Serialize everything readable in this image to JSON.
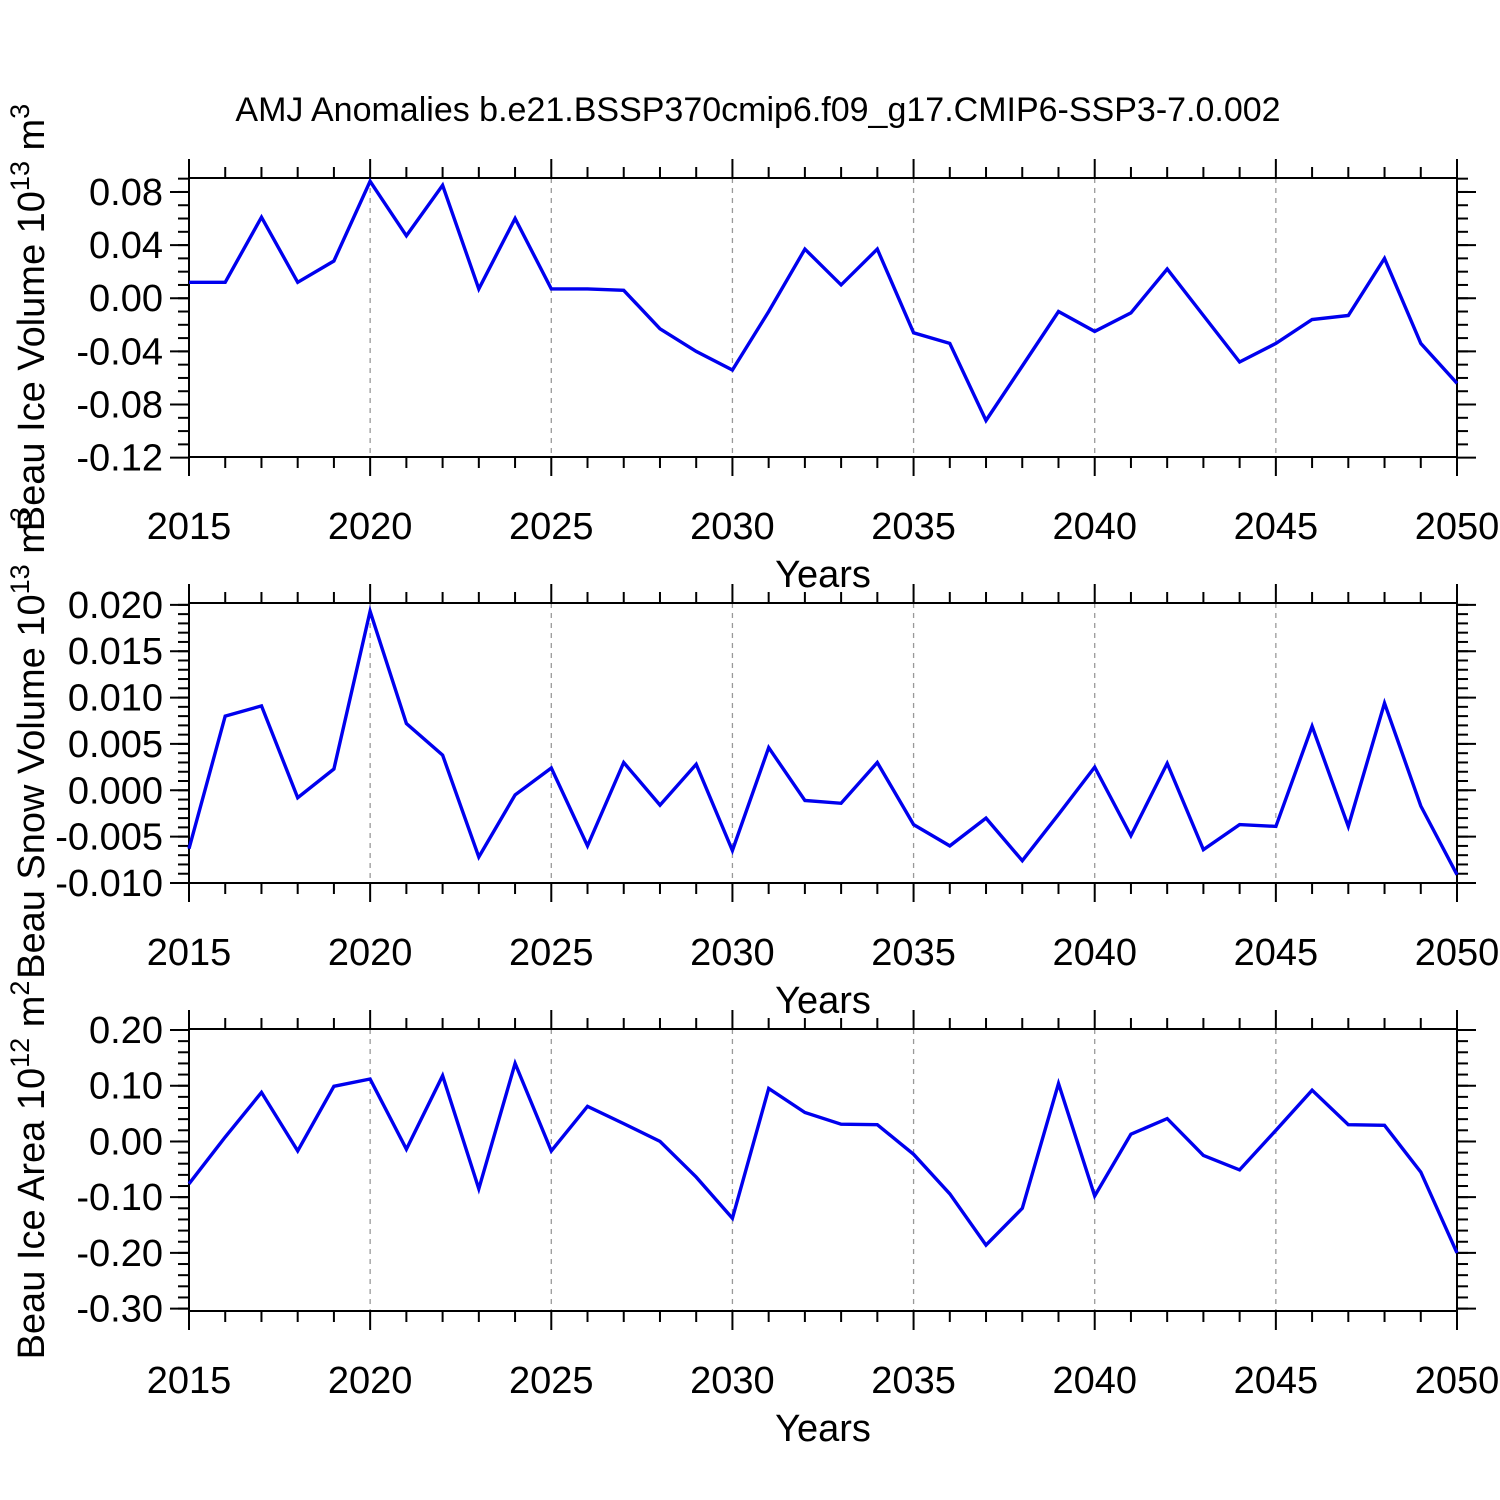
{
  "figure": {
    "title": "AMJ Anomalies b.e21.BSSP370cmip6.f09_g17.CMIP6-SSP3-7.0.002",
    "background": "#ffffff"
  },
  "chart_data": {
    "type": "line",
    "title": "AMJ Anomalies b.e21.BSSP370cmip6.f09_g17.CMIP6-SSP3-7.0.002",
    "xlabel": "Years",
    "x": [
      2015,
      2016,
      2017,
      2018,
      2019,
      2020,
      2021,
      2022,
      2023,
      2024,
      2025,
      2026,
      2027,
      2028,
      2029,
      2030,
      2031,
      2032,
      2033,
      2034,
      2035,
      2036,
      2037,
      2038,
      2039,
      2040,
      2041,
      2042,
      2043,
      2044,
      2045,
      2046,
      2047,
      2048,
      2049,
      2050
    ],
    "xlim": [
      2015,
      2050
    ],
    "x_major_ticks": [
      2015,
      2020,
      2025,
      2030,
      2035,
      2040,
      2045,
      2050
    ],
    "x_major_tick_labels": [
      "2015",
      "2020",
      "2025",
      "2030",
      "2035",
      "2040",
      "2045",
      "2050"
    ],
    "x_minor_step_years": 1,
    "x_grid_years": [
      2020,
      2025,
      2030,
      2035,
      2040,
      2045
    ],
    "grid_style": "dashed-vertical",
    "legend": "none",
    "series_color": "#0000ee",
    "grid_color": "#999999",
    "axis_color": "#000000",
    "panels": [
      {
        "name": "ice-volume",
        "ylabel": "Beau Ice Volume 10¹³ m³",
        "ylabel_parts": {
          "base": "Beau Ice Volume 10",
          "exp": "13",
          "unit": " m",
          "unit_exp": "3"
        },
        "ylim": [
          -0.1195,
          0.0905
        ],
        "y_minor_step": 0.01,
        "yticks": [
          {
            "v": 0.08,
            "label": "0.08"
          },
          {
            "v": 0.04,
            "label": "0.04"
          },
          {
            "v": 0.0,
            "label": "0.00"
          },
          {
            "v": -0.04,
            "label": "-0.04"
          },
          {
            "v": -0.08,
            "label": "-0.08"
          },
          {
            "v": -0.12,
            "label": "-0.12"
          }
        ],
        "values": [
          0.012,
          0.012,
          0.061,
          0.012,
          0.028,
          0.088,
          0.047,
          0.085,
          0.007,
          0.06,
          0.007,
          0.007,
          0.006,
          -0.023,
          -0.04,
          -0.054,
          -0.01,
          0.037,
          0.01,
          0.037,
          -0.026,
          -0.034,
          -0.092,
          -0.051,
          -0.01,
          -0.025,
          -0.011,
          0.022,
          -0.013,
          -0.048,
          -0.034,
          -0.016,
          -0.013,
          0.03,
          -0.034,
          -0.064
        ]
      },
      {
        "name": "snow-volume",
        "ylabel": "Beau Snow Volume 10¹³ m³",
        "ylabel_parts": {
          "base": "Beau Snow Volume 10",
          "exp": "13",
          "unit": " m",
          "unit_exp": "3"
        },
        "ylim": [
          -0.01,
          0.0202
        ],
        "y_minor_step": 0.001,
        "yticks": [
          {
            "v": 0.02,
            "label": "0.020"
          },
          {
            "v": 0.015,
            "label": "0.015"
          },
          {
            "v": 0.01,
            "label": "0.010"
          },
          {
            "v": 0.005,
            "label": "0.005"
          },
          {
            "v": 0.0,
            "label": "0.000"
          },
          {
            "v": -0.005,
            "label": "-0.005"
          },
          {
            "v": -0.01,
            "label": "-0.010"
          }
        ],
        "values": [
          -0.0063,
          0.008,
          0.0091,
          -0.0008,
          0.0023,
          0.0193,
          0.0072,
          0.0038,
          -0.0072,
          -0.0005,
          0.0024,
          -0.006,
          0.003,
          -0.0016,
          0.0028,
          -0.0065,
          0.0046,
          -0.0011,
          -0.0014,
          0.003,
          -0.0037,
          -0.006,
          -0.003,
          -0.0076,
          -0.0026,
          0.0025,
          -0.0049,
          0.0029,
          -0.0064,
          -0.0037,
          -0.0039,
          0.0069,
          -0.0039,
          0.0094,
          -0.0017,
          -0.0091
        ]
      },
      {
        "name": "ice-area",
        "ylabel": "Beau Ice Area 10¹² m²",
        "ylabel_parts": {
          "base": "Beau Ice Area 10",
          "exp": "12",
          "unit": " m",
          "unit_exp": "2"
        },
        "ylim": [
          -0.3043,
          0.2018
        ],
        "y_minor_step": 0.02,
        "yticks": [
          {
            "v": 0.2,
            "label": "0.20"
          },
          {
            "v": 0.1,
            "label": "0.10"
          },
          {
            "v": 0.0,
            "label": "0.00"
          },
          {
            "v": -0.1,
            "label": "-0.10"
          },
          {
            "v": -0.2,
            "label": "-0.20"
          },
          {
            "v": -0.3,
            "label": "-0.30"
          }
        ],
        "values": [
          -0.076,
          0.008,
          0.088,
          -0.017,
          0.099,
          0.112,
          -0.014,
          0.118,
          -0.085,
          0.14,
          -0.017,
          0.063,
          0.032,
          0.0,
          -0.064,
          -0.138,
          0.095,
          0.052,
          0.031,
          0.03,
          -0.023,
          -0.094,
          -0.186,
          -0.12,
          0.104,
          -0.098,
          0.013,
          0.041,
          -0.025,
          -0.051,
          0.02,
          0.092,
          0.03,
          0.029,
          -0.055,
          -0.2
        ]
      }
    ]
  }
}
